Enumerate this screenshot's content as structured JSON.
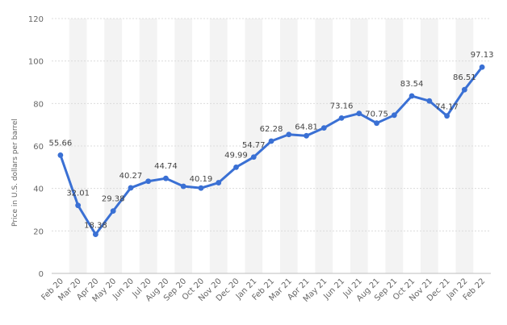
{
  "chart_data": {
    "type": "line",
    "title": "",
    "xlabel": "",
    "ylabel": "Price in U.S. dollars per barrel",
    "ylim": [
      0,
      120
    ],
    "yticks": [
      0,
      20,
      40,
      60,
      80,
      100,
      120
    ],
    "grid": true,
    "legend": "none",
    "categories": [
      "Feb 20",
      "Mar 20",
      "Apr 20",
      "May 20",
      "Jun 20",
      "Jul 20",
      "Aug 20",
      "Sep 20",
      "Oct 20",
      "Nov 20",
      "Dec 20",
      "Jan 21",
      "Feb 21",
      "Mar 21",
      "Apr 21",
      "May 21",
      "Jun 21",
      "Jul 21",
      "Aug 21",
      "Sep 21",
      "Oct 21",
      "Nov 21",
      "Dec 21",
      "Jan 22",
      "Feb 22"
    ],
    "series": [
      {
        "values": [
          55.66,
          32.01,
          18.38,
          29.38,
          40.27,
          43.4,
          44.74,
          41.0,
          40.19,
          42.7,
          49.99,
          54.77,
          62.28,
          65.4,
          64.81,
          68.5,
          73.16,
          75.3,
          70.75,
          74.5,
          83.54,
          81.2,
          74.17,
          86.51,
          97.13
        ],
        "labels": [
          "55.66",
          "32.01",
          "18.38",
          "29.38",
          "40.27",
          "",
          "44.74",
          "",
          "40.19",
          "",
          "49.99",
          "54.77",
          "62.28",
          "",
          "64.81",
          "",
          "73.16",
          "",
          "70.75",
          "",
          "83.54",
          "",
          "74.17",
          "86.51",
          "97.13"
        ],
        "color": "#3a70d4"
      }
    ],
    "band_color": "#f3f3f3",
    "grid_color": "#dcdcdc"
  }
}
